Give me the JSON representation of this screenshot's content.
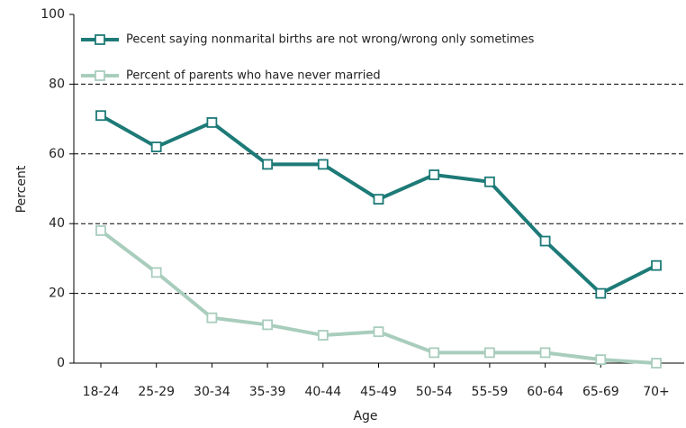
{
  "chart_data": {
    "type": "line",
    "x_label": "Age",
    "y_label": "Percent",
    "categories": [
      "18-24",
      "25-29",
      "30-34",
      "35-39",
      "40-44",
      "45-49",
      "50-54",
      "55-59",
      "60-64",
      "65-69",
      "70+"
    ],
    "series": [
      {
        "name": "Pecent saying nonmarital births are not wrong/wrong only sometimes",
        "color": "#1d7a77",
        "values": [
          71,
          62,
          69,
          57,
          57,
          47,
          54,
          52,
          35,
          20,
          28
        ]
      },
      {
        "name": "Percent of parents who have never married",
        "color": "#a9cdbd",
        "values": [
          38,
          26,
          13,
          11,
          8,
          9,
          3,
          3,
          3,
          1,
          0
        ]
      }
    ],
    "ylim": [
      0,
      100
    ],
    "yticks": [
      0,
      20,
      40,
      60,
      80,
      100
    ],
    "grid": true
  }
}
